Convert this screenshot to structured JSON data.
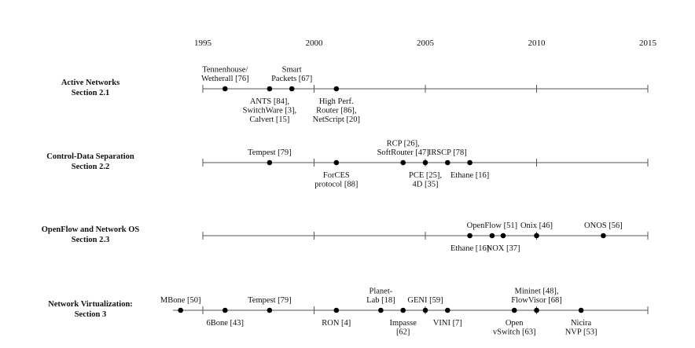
{
  "years": [
    "1995",
    "2000",
    "2005",
    "2010",
    "2015"
  ],
  "sections": [
    {
      "id": "active",
      "title": [
        "Active Networks",
        "Section 2.1"
      ],
      "extends_left": false,
      "events": [
        {
          "year": 1996.0,
          "label": [
            "Tennenhouse/",
            "Wetherall [76]"
          ],
          "pos": "above"
        },
        {
          "year": 1998.0,
          "label": [
            "ANTS [84],",
            "SwitchWare [3],",
            "Calvert [15]"
          ],
          "pos": "below"
        },
        {
          "year": 1999.0,
          "label": [
            "Smart",
            "Packets [67]"
          ],
          "pos": "above"
        },
        {
          "year": 2001.0,
          "label": [
            "High Perf.",
            "Router [86],",
            "NetScript [20]"
          ],
          "pos": "below"
        }
      ]
    },
    {
      "id": "control-data",
      "title": [
        "Control-Data Separation",
        "Section 2.2"
      ],
      "extends_left": false,
      "events": [
        {
          "year": 1998.0,
          "label": [
            "Tempest [79]"
          ],
          "pos": "above"
        },
        {
          "year": 2001.0,
          "label": [
            "ForCES",
            "protocol [88]"
          ],
          "pos": "below"
        },
        {
          "year": 2004.0,
          "label": [
            "RCP [26],",
            "SoftRouter [47]"
          ],
          "pos": "above"
        },
        {
          "year": 2005.0,
          "label": [
            "PCE [25],",
            "4D [35]"
          ],
          "pos": "below"
        },
        {
          "year": 2006.0,
          "label": [
            "IRSCP [78]"
          ],
          "pos": "above"
        },
        {
          "year": 2007.0,
          "label": [
            "Ethane [16]"
          ],
          "pos": "below"
        }
      ]
    },
    {
      "id": "openflow",
      "title": [
        "OpenFlow and Network OS",
        "Section 2.3"
      ],
      "extends_left": false,
      "events": [
        {
          "year": 2007.0,
          "label": [
            "Ethane [16]"
          ],
          "pos": "below"
        },
        {
          "year": 2008.0,
          "label": [
            "OpenFlow [51]"
          ],
          "pos": "above"
        },
        {
          "year": 2008.5,
          "label": [
            "NOX [37]"
          ],
          "pos": "below"
        },
        {
          "year": 2010.0,
          "label": [
            "Onix [46]"
          ],
          "pos": "above"
        },
        {
          "year": 2013.0,
          "label": [
            "ONOS [56]"
          ],
          "pos": "above"
        }
      ]
    },
    {
      "id": "virtualization",
      "title": [
        "Network Virtualization:",
        "Section 3"
      ],
      "extends_left": true,
      "events": [
        {
          "year": 1994.0,
          "label": [
            "MBone [50]"
          ],
          "pos": "above"
        },
        {
          "year": 1996.0,
          "label": [
            "6Bone [43]"
          ],
          "pos": "below"
        },
        {
          "year": 1998.0,
          "label": [
            "Tempest [79]"
          ],
          "pos": "above"
        },
        {
          "year": 2001.0,
          "label": [
            "RON [4]"
          ],
          "pos": "below"
        },
        {
          "year": 2003.0,
          "label": [
            "Planet-",
            "Lab [18]"
          ],
          "pos": "above"
        },
        {
          "year": 2004.0,
          "label": [
            "Impasse",
            "[62]"
          ],
          "pos": "below"
        },
        {
          "year": 2005.0,
          "label": [
            "GENI [59]"
          ],
          "pos": "above"
        },
        {
          "year": 2006.0,
          "label": [
            "VINI [7]"
          ],
          "pos": "below"
        },
        {
          "year": 2009.0,
          "label": [
            "Open",
            "vSwitch [63]"
          ],
          "pos": "below"
        },
        {
          "year": 2010.0,
          "label": [
            "Mininet [48],",
            "FlowVisor [68]"
          ],
          "pos": "above"
        },
        {
          "year": 2012.0,
          "label": [
            "Nicira",
            "NVP [53]"
          ],
          "pos": "below"
        }
      ]
    }
  ]
}
